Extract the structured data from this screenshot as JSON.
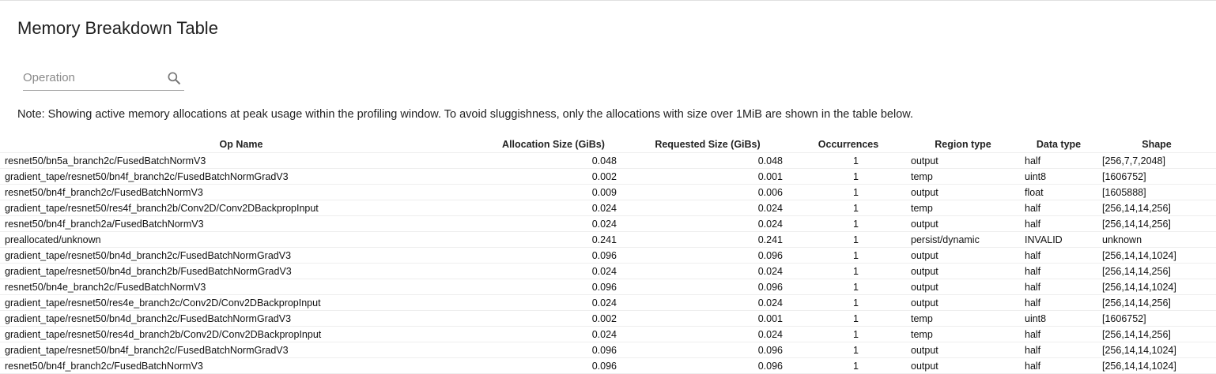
{
  "title": "Memory Breakdown Table",
  "search": {
    "placeholder": "Operation",
    "value": "",
    "icon": "search-icon"
  },
  "note": "Note: Showing active memory allocations at peak usage within the profiling window. To avoid sluggishness, only the allocations with size over 1MiB are shown in the table below.",
  "table": {
    "columns": [
      "Op Name",
      "Allocation Size (GiBs)",
      "Requested Size (GiBs)",
      "Occurrences",
      "Region type",
      "Data type",
      "Shape"
    ],
    "rows": [
      [
        "resnet50/bn5a_branch2c/FusedBatchNormV3",
        "0.048",
        "0.048",
        "1",
        "output",
        "half",
        "[256,7,7,2048]"
      ],
      [
        "gradient_tape/resnet50/bn4f_branch2c/FusedBatchNormGradV3",
        "0.002",
        "0.001",
        "1",
        "temp",
        "uint8",
        "[1606752]"
      ],
      [
        "resnet50/bn4f_branch2c/FusedBatchNormV3",
        "0.009",
        "0.006",
        "1",
        "output",
        "float",
        "[1605888]"
      ],
      [
        "gradient_tape/resnet50/res4f_branch2b/Conv2D/Conv2DBackpropInput",
        "0.024",
        "0.024",
        "1",
        "temp",
        "half",
        "[256,14,14,256]"
      ],
      [
        "resnet50/bn4f_branch2a/FusedBatchNormV3",
        "0.024",
        "0.024",
        "1",
        "output",
        "half",
        "[256,14,14,256]"
      ],
      [
        "preallocated/unknown",
        "0.241",
        "0.241",
        "1",
        "persist/dynamic",
        "INVALID",
        "unknown"
      ],
      [
        "gradient_tape/resnet50/bn4d_branch2c/FusedBatchNormGradV3",
        "0.096",
        "0.096",
        "1",
        "output",
        "half",
        "[256,14,14,1024]"
      ],
      [
        "gradient_tape/resnet50/bn4d_branch2b/FusedBatchNormGradV3",
        "0.024",
        "0.024",
        "1",
        "output",
        "half",
        "[256,14,14,256]"
      ],
      [
        "resnet50/bn4e_branch2c/FusedBatchNormV3",
        "0.096",
        "0.096",
        "1",
        "output",
        "half",
        "[256,14,14,1024]"
      ],
      [
        "gradient_tape/resnet50/res4e_branch2c/Conv2D/Conv2DBackpropInput",
        "0.024",
        "0.024",
        "1",
        "output",
        "half",
        "[256,14,14,256]"
      ],
      [
        "gradient_tape/resnet50/bn4d_branch2c/FusedBatchNormGradV3",
        "0.002",
        "0.001",
        "1",
        "temp",
        "uint8",
        "[1606752]"
      ],
      [
        "gradient_tape/resnet50/res4d_branch2b/Conv2D/Conv2DBackpropInput",
        "0.024",
        "0.024",
        "1",
        "temp",
        "half",
        "[256,14,14,256]"
      ],
      [
        "gradient_tape/resnet50/bn4f_branch2c/FusedBatchNormGradV3",
        "0.096",
        "0.096",
        "1",
        "output",
        "half",
        "[256,14,14,1024]"
      ],
      [
        "resnet50/bn4f_branch2c/FusedBatchNormV3",
        "0.096",
        "0.096",
        "1",
        "output",
        "half",
        "[256,14,14,1024]"
      ]
    ]
  }
}
